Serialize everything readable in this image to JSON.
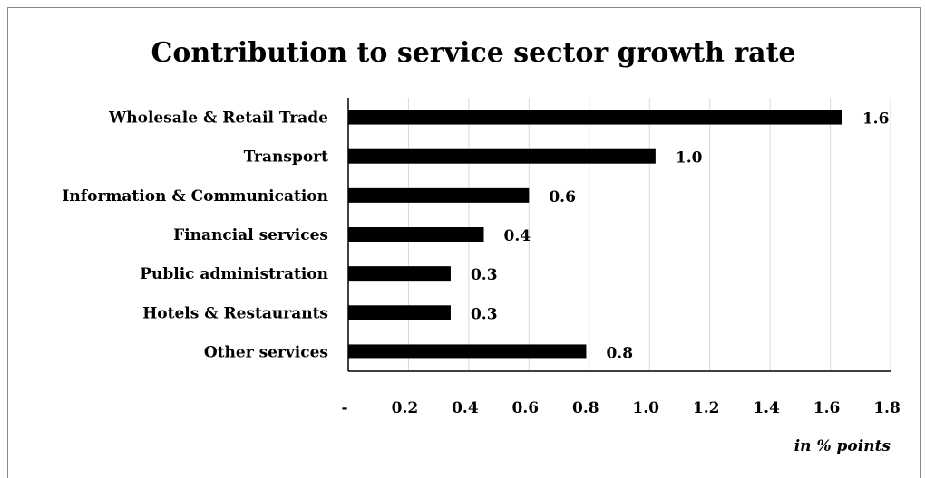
{
  "chart_data": {
    "type": "bar",
    "orientation": "horizontal",
    "title": "Contribution to service sector growth rate",
    "unit_label": "in % points",
    "categories": [
      "Wholesale & Retail Trade",
      "Transport",
      "Information & Communication",
      "Financial services",
      "Public administration",
      "Hotels & Restaurants",
      "Other services"
    ],
    "values": [
      1.64,
      1.02,
      0.6,
      0.45,
      0.34,
      0.34,
      0.79
    ],
    "value_labels": [
      "1.6",
      "1.0",
      "0.6",
      "0.4",
      "0.3",
      "0.3",
      "0.8"
    ],
    "xlim": [
      0,
      1.8
    ],
    "x_ticks": [
      0,
      0.2,
      0.4,
      0.6,
      0.8,
      1.0,
      1.2,
      1.4,
      1.6,
      1.8
    ],
    "x_tick_labels": [
      "-",
      "0.2",
      "0.4",
      "0.6",
      "0.8",
      "1.0",
      "1.2",
      "1.4",
      "1.6",
      "1.8"
    ],
    "grid": true,
    "legend": "none",
    "bar_color": "#000000",
    "grid_color": "#d9d9d9"
  }
}
